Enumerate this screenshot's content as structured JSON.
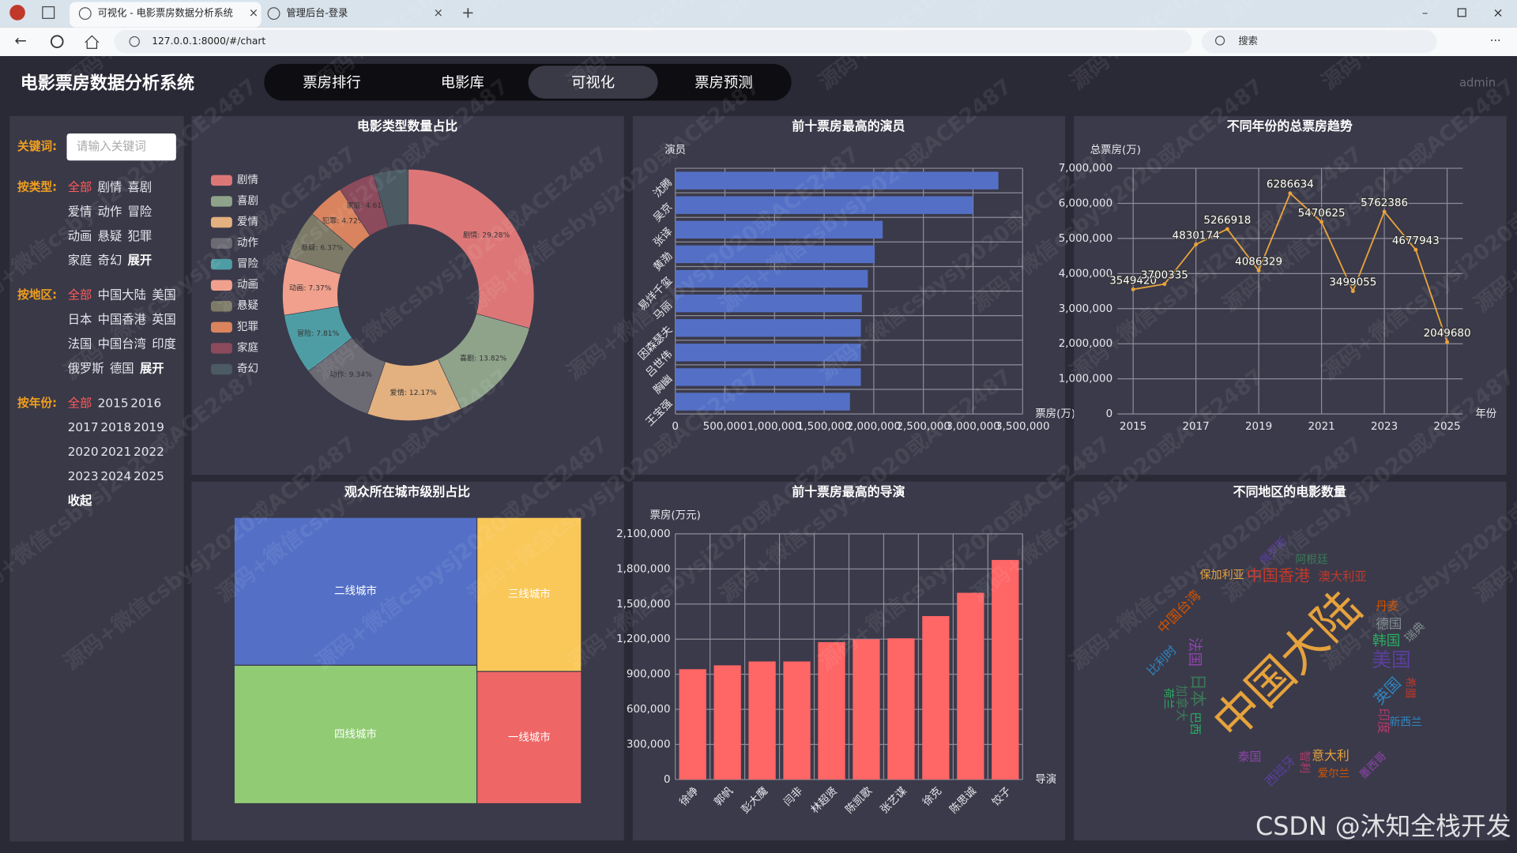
{
  "browser": {
    "tabs": [
      "可视化 - 电影票房数据分析系统",
      "管理后台-登录"
    ],
    "url": "127.0.0.1:8000/#/chart",
    "search": "搜索"
  },
  "header": {
    "title": "电影票房数据分析系统",
    "nav": [
      "票房排行",
      "电影库",
      "可视化",
      "票房预测"
    ],
    "active": 2,
    "user": "admin"
  },
  "filters": {
    "keyword_label": "关键词:",
    "keyword_placeholder": "请输入关键词",
    "groups": [
      {
        "label": "按类型:",
        "options": [
          "全部",
          "剧情",
          "喜剧",
          "爱情",
          "动作",
          "冒险",
          "动画",
          "悬疑",
          "犯罪",
          "家庭",
          "奇幻"
        ],
        "selected": 0,
        "toggle": "展开"
      },
      {
        "label": "按地区:",
        "options": [
          "全部",
          "中国大陆",
          "美国",
          "日本",
          "中国香港",
          "英国",
          "法国",
          "中国台湾",
          "印度",
          "俄罗斯",
          "德国"
        ],
        "selected": 0,
        "toggle": "展开"
      },
      {
        "label": "按年份:",
        "options": [
          "全部",
          "2015",
          "2016",
          "2017",
          "2018",
          "2019",
          "2020",
          "2021",
          "2022",
          "2023",
          "2024",
          "2025"
        ],
        "selected": 0,
        "toggle": "收起"
      }
    ]
  },
  "watermark": "源码+微信csbysj2020或ACE2487",
  "credit": "CSDN @沐知全栈开发",
  "chart_data": [
    {
      "type": "pie",
      "title": "电影类型数量占比",
      "donut": true,
      "legend": "left",
      "categories": [
        "剧情",
        "喜剧",
        "爱情",
        "动作",
        "冒险",
        "动画",
        "悬疑",
        "犯罪",
        "家庭",
        "奇幻"
      ],
      "values": [
        29.28,
        13.82,
        12.17,
        9.34,
        7.81,
        7.37,
        6.37,
        4.72,
        4.61,
        4.51
      ],
      "value_labels": [
        "剧情: 29.28%",
        "喜剧: 13.82%",
        "爱情: 12.17%",
        "动作: 9.34%",
        "冒险: 7.81%",
        "动画: 7.37%",
        "悬疑: 6.37%",
        "犯罪: 4.72%",
        "家庭: 4.61%",
        null
      ],
      "colors": [
        "#dd7777",
        "#8fa38b",
        "#e3b07f",
        "#6c6b74",
        "#4f9da4",
        "#f0a08c",
        "#7d7b68",
        "#d9845e",
        "#8b4b5c",
        "#4b5a63"
      ]
    },
    {
      "type": "bar",
      "horizontal": true,
      "title": "前十票房最高的演员",
      "y_label": "演员",
      "x_label": "票房(万)",
      "categories": [
        "沈腾",
        "吴京",
        "张译",
        "黄渤",
        "易烊千玺",
        "马丽",
        "因森瑟夫",
        "吕世伟",
        "胸幽",
        "王宝强"
      ],
      "values": [
        3256000,
        3000000,
        2090000,
        2010000,
        1940000,
        1880000,
        1870000,
        1870000,
        1870000,
        1760000
      ],
      "color": "#5470c6",
      "grid": true,
      "xlim": [
        0,
        3500000
      ],
      "xticks": [
        0,
        {
          "value": 500000,
          "label": "500,000"
        },
        {
          "value": 1000000,
          "label": "1,000,000"
        },
        {
          "value": 1500000,
          "label": "1,500,000"
        },
        {
          "value": 2000000,
          "label": "2,000,000"
        },
        {
          "value": 2500000,
          "label": "2,500,000"
        },
        {
          "value": 3000000,
          "label": "3,000,000"
        },
        {
          "value": 3500000,
          "label": "3,500,000"
        }
      ]
    },
    {
      "type": "line",
      "title": "不同年份的总票房趋势",
      "y_label": "总票房(万)",
      "x_label": "年份",
      "x": [
        2015,
        2016,
        2017,
        2018,
        2019,
        2020,
        2021,
        2022,
        2023,
        2024,
        2025
      ],
      "values": [
        3549420,
        3700335,
        4830174,
        5266918,
        4086329,
        6286634,
        5470625,
        3499055,
        5762386,
        4677943,
        2049680
      ],
      "color": "#e8a33a",
      "data_labels": true,
      "grid": true,
      "xlim": [
        2014.5,
        2025.5
      ],
      "xticks": [
        2015,
        2017,
        2019,
        2021,
        2023,
        2025
      ],
      "ylim": [
        0,
        7000000
      ],
      "yticks": [
        0,
        {
          "value": 1000000,
          "label": "1,000,000"
        },
        {
          "value": 2000000,
          "label": "2,000,000"
        },
        {
          "value": 3000000,
          "label": "3,000,000"
        },
        {
          "value": 4000000,
          "label": "4,000,000"
        },
        {
          "value": 5000000,
          "label": "5,000,000"
        },
        {
          "value": 6000000,
          "label": "6,000,000"
        },
        {
          "value": 7000000,
          "label": "7,000,000"
        }
      ]
    },
    {
      "type": "treemap",
      "title": "观众所在城市级别占比",
      "categories": [
        "二线城市",
        "四线城市",
        "三线城市",
        "一线城市"
      ],
      "values": [
        36.1,
        33.8,
        16.2,
        13.9
      ],
      "colors": [
        "#5470c6",
        "#91cc75",
        "#fac858",
        "#ee6666"
      ]
    },
    {
      "type": "bar",
      "title": "前十票房最高的导演",
      "y_label": "票房(万元)",
      "x_label": "导演",
      "categories": [
        "徐峥",
        "郭帆",
        "彭大魔",
        "闫非",
        "林超贤",
        "陈凯歌",
        "张艺谋",
        "徐克",
        "陈思诚",
        "饺子"
      ],
      "values": [
        943000,
        976000,
        1009000,
        1009000,
        1174000,
        1199000,
        1207000,
        1397000,
        1596000,
        1877000
      ],
      "color": "#ff6666",
      "grid": true,
      "ylim": [
        0,
        2100000
      ],
      "yticks": [
        0,
        {
          "value": 300000,
          "label": "300,000"
        },
        {
          "value": 600000,
          "label": "600,000"
        },
        {
          "value": 900000,
          "label": "900,000"
        },
        {
          "value": 1200000,
          "label": "1,200,000"
        },
        {
          "value": 1500000,
          "label": "1,500,000"
        },
        {
          "value": 1800000,
          "label": "1,800,000"
        },
        {
          "value": 2100000,
          "label": "2,100,000"
        }
      ]
    },
    {
      "type": "wordcloud",
      "title": "不同地区的电影数量",
      "categories": [
        "中国大陆",
        "美国",
        "日本",
        "中国香港",
        "英国",
        "法国",
        "韩国",
        "中国台湾",
        "德国",
        "印度",
        "意大利",
        "西班牙",
        "加拿大",
        "澳大利亚",
        "比利时",
        "泰国",
        "巴西",
        "丹麦",
        "瑞典",
        "智利",
        "保加利亚",
        "俄罗斯",
        "阿根廷",
        "希腊",
        "新西兰",
        "墨西哥",
        "荷兰",
        "爱尔兰"
      ],
      "values": [
        600,
        160,
        110,
        100,
        90,
        80,
        70,
        60,
        55,
        50,
        45,
        42,
        40,
        38,
        35,
        32,
        30,
        28,
        26,
        24,
        22,
        22,
        20,
        18,
        18,
        16,
        15,
        14
      ],
      "colors": [
        "#e6a23c",
        "#5b3fa0",
        "#3b7a57",
        "#c0392b",
        "#2e86c1",
        "#8e44ad",
        "#27ae60",
        "#d35400",
        "#7f8c8d",
        "#b03a6b"
      ]
    }
  ]
}
